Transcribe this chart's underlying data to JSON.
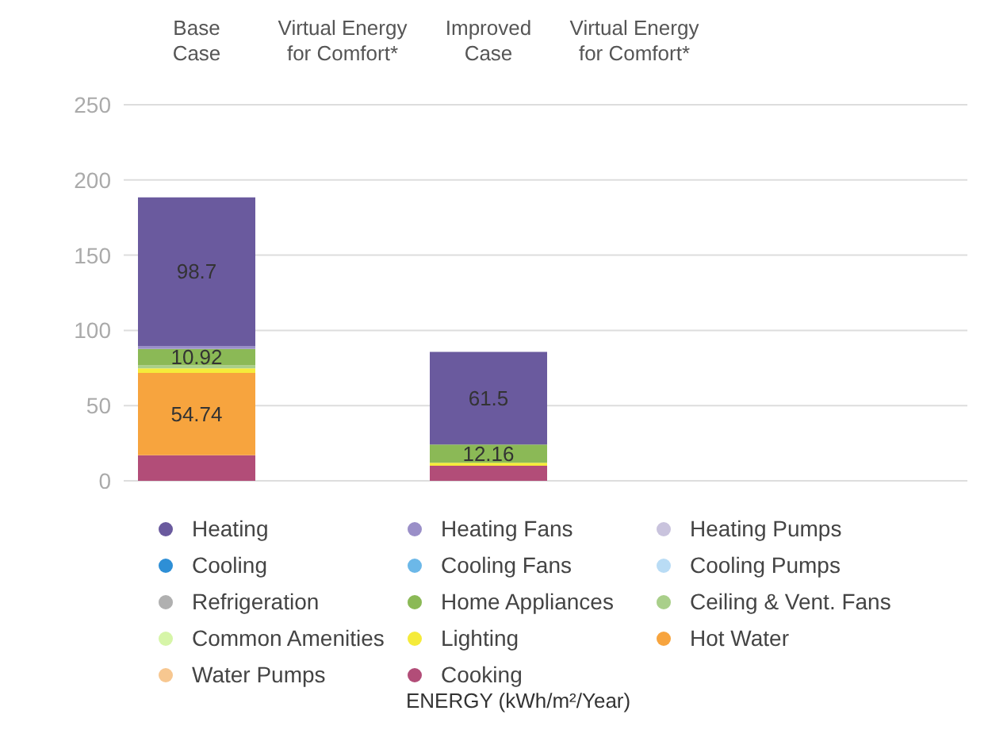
{
  "chart_data": {
    "type": "bar",
    "stacked": true,
    "annotations": [
      "ENERGY (kWh/m²/Year)"
    ],
    "categories": [
      "Base Case",
      "Virtual Energy for Comfort*",
      "Improved Case",
      "Virtual Energy for Comfort*"
    ],
    "ylim": [
      0,
      250
    ],
    "yticks": [
      0,
      50,
      100,
      150,
      200,
      250
    ],
    "grid": "y",
    "legend": "bottom",
    "series": [
      {
        "name": "Cooking",
        "color": "#b24d78",
        "values": [
          17,
          null,
          10,
          null
        ]
      },
      {
        "name": "Water Pumps",
        "color": "#f7c790",
        "values": [
          null,
          null,
          null,
          null
        ]
      },
      {
        "name": "Hot Water",
        "color": "#f7a43e",
        "values": [
          54.74,
          null,
          null,
          null
        ],
        "value_labels": [
          "54.74",
          null,
          null,
          null
        ]
      },
      {
        "name": "Lighting",
        "color": "#f5eb3a",
        "values": [
          3,
          null,
          2,
          null
        ]
      },
      {
        "name": "Common Amenities",
        "color": "#d6f5a8",
        "values": [
          null,
          null,
          null,
          null
        ]
      },
      {
        "name": "Ceiling & Vent. Fans",
        "color": "#a9cf8a",
        "values": [
          2,
          null,
          null,
          null
        ]
      },
      {
        "name": "Home Appliances",
        "color": "#8bb956",
        "values": [
          10.92,
          null,
          12.16,
          null
        ],
        "value_labels": [
          "10.92",
          null,
          "12.16",
          null
        ]
      },
      {
        "name": "Refrigeration",
        "color": "#b0b0b0",
        "values": [
          null,
          null,
          null,
          null
        ]
      },
      {
        "name": "Cooling Pumps",
        "color": "#b9dcf5",
        "values": [
          null,
          null,
          null,
          null
        ]
      },
      {
        "name": "Cooling Fans",
        "color": "#6cb8e8",
        "values": [
          null,
          null,
          null,
          null
        ]
      },
      {
        "name": "Cooling",
        "color": "#2e8fd6",
        "values": [
          null,
          null,
          null,
          null
        ]
      },
      {
        "name": "Heating Pumps",
        "color": "#c9c3dd",
        "values": [
          null,
          null,
          null,
          null
        ]
      },
      {
        "name": "Heating Fans",
        "color": "#9a8fc8",
        "values": [
          2,
          null,
          null,
          null
        ]
      },
      {
        "name": "Heating",
        "color": "#6a5a9e",
        "values": [
          98.7,
          null,
          61.5,
          null
        ],
        "value_labels": [
          "98.7",
          null,
          "61.5",
          null
        ]
      }
    ]
  }
}
